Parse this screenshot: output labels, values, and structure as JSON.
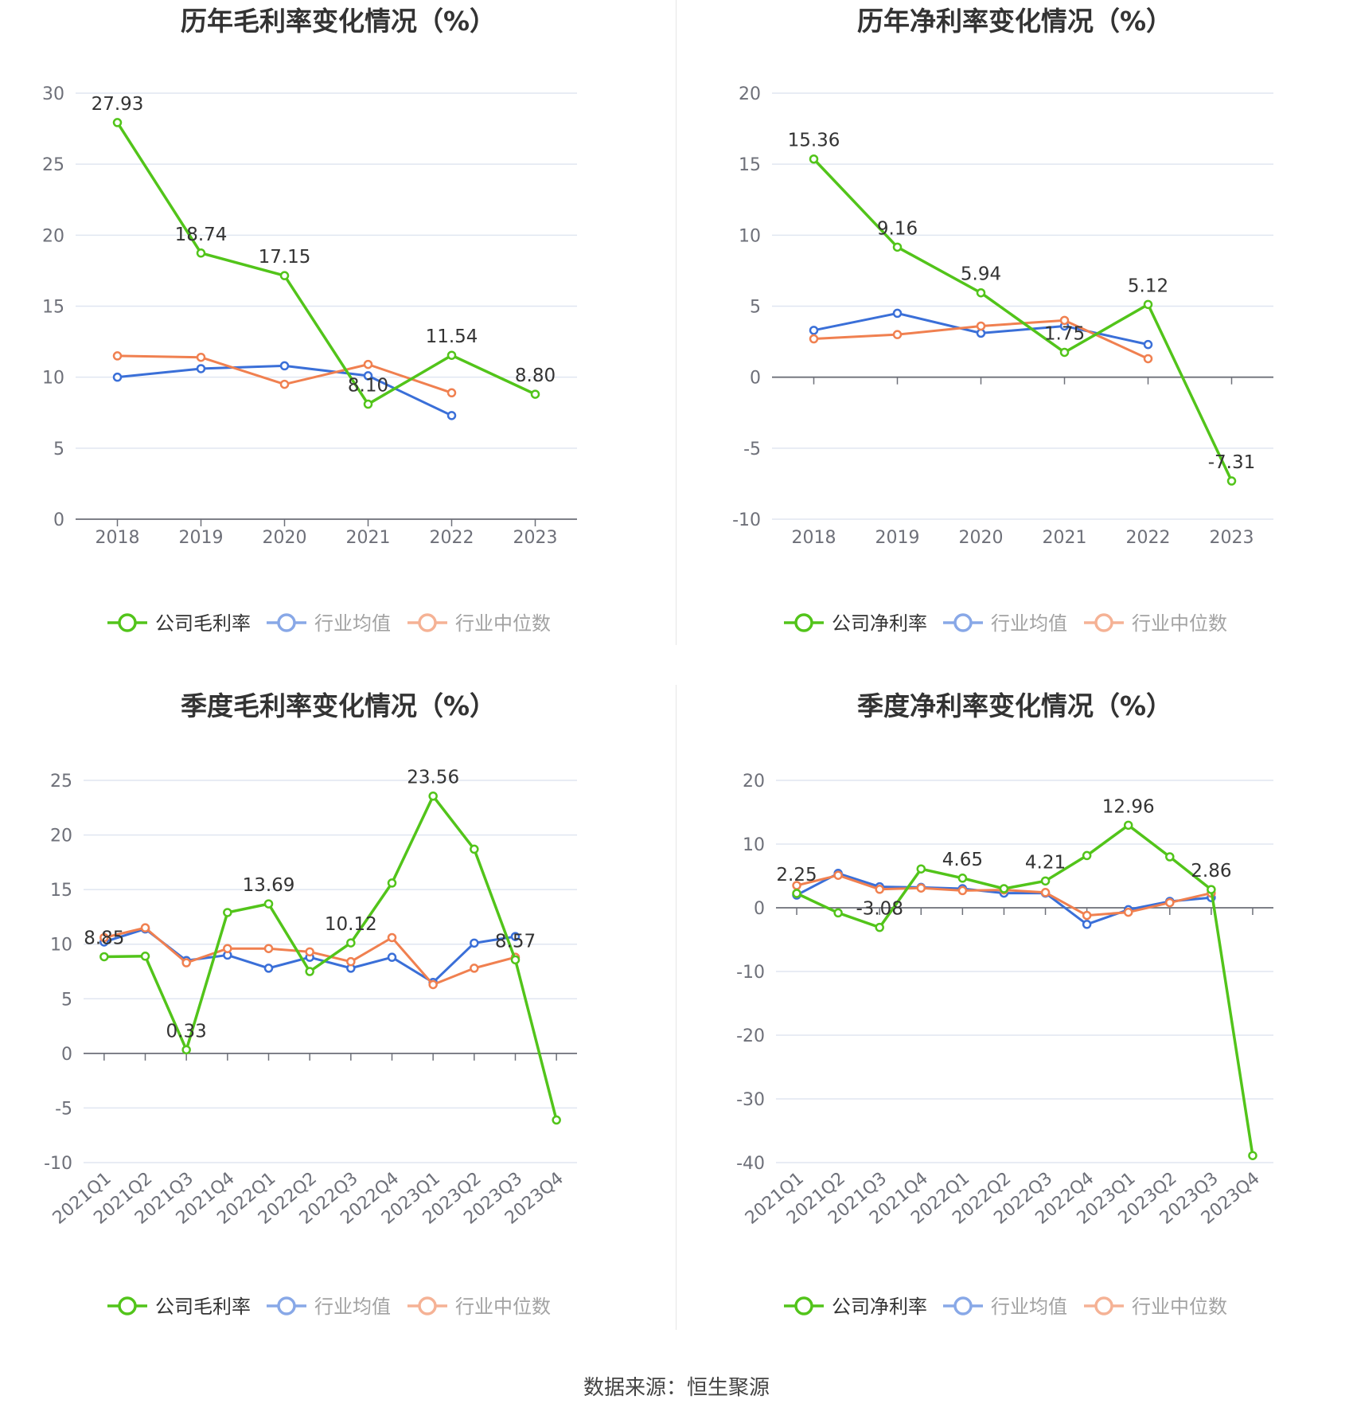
{
  "source": "数据来源：恒生聚源",
  "colors": {
    "company": "#52c41a",
    "avg": "#3a6fd8",
    "median": "#f08050",
    "grid": "#e0e6f1",
    "axis": "#6e7079",
    "text": "#333333",
    "tick": "#6e7079"
  },
  "charts": [
    {
      "id": "annual-gross",
      "title": "历年毛利率变化情况（%）",
      "legend": [
        "公司毛利率",
        "行业均值",
        "行业中位数"
      ],
      "chart_data": {
        "type": "line",
        "categories": [
          "2018",
          "2019",
          "2020",
          "2021",
          "2022",
          "2023"
        ],
        "y_ticks": [
          "30",
          "25",
          "20",
          "15",
          "10",
          "5",
          "0"
        ],
        "ylim": [
          0,
          30
        ],
        "series": [
          {
            "name": "公司毛利率",
            "values": [
              27.93,
              18.74,
              17.15,
              8.1,
              11.54,
              8.8
            ],
            "labels": [
              "27.93",
              "18.74",
              "17.15",
              "8.10",
              "11.54",
              "8.80"
            ]
          },
          {
            "name": "行业均值",
            "values": [
              10.0,
              10.6,
              10.8,
              10.1,
              7.3,
              null
            ]
          },
          {
            "name": "行业中位数",
            "values": [
              11.5,
              11.4,
              9.5,
              10.9,
              8.9,
              null
            ]
          }
        ]
      }
    },
    {
      "id": "annual-net",
      "title": "历年净利率变化情况（%）",
      "legend": [
        "公司净利率",
        "行业均值",
        "行业中位数"
      ],
      "chart_data": {
        "type": "line",
        "categories": [
          "2018",
          "2019",
          "2020",
          "2021",
          "2022",
          "2023"
        ],
        "y_ticks": [
          "20",
          "15",
          "10",
          "5",
          "0",
          "-5",
          "-10"
        ],
        "ylim": [
          -10,
          20
        ],
        "series": [
          {
            "name": "公司净利率",
            "values": [
              15.36,
              9.16,
              5.94,
              1.75,
              5.12,
              -7.31
            ],
            "labels": [
              "15.36",
              "9.16",
              "5.94",
              "1.75",
              "5.12",
              "-7.31"
            ]
          },
          {
            "name": "行业均值",
            "values": [
              3.3,
              4.5,
              3.1,
              3.6,
              2.3,
              null
            ]
          },
          {
            "name": "行业中位数",
            "values": [
              2.7,
              3.0,
              3.6,
              4.0,
              1.3,
              null
            ]
          }
        ]
      }
    },
    {
      "id": "quarterly-gross",
      "title": "季度毛利率变化情况（%）",
      "legend": [
        "公司毛利率",
        "行业均值",
        "行业中位数"
      ],
      "chart_data": {
        "type": "line",
        "categories": [
          "2021Q1",
          "2021Q2",
          "2021Q3",
          "2021Q4",
          "2022Q1",
          "2022Q2",
          "2022Q3",
          "2022Q4",
          "2023Q1",
          "2023Q2",
          "2023Q3",
          "2023Q4"
        ],
        "y_ticks": [
          "25",
          "20",
          "15",
          "10",
          "5",
          "0",
          "-5",
          "-10"
        ],
        "ylim": [
          -10,
          25
        ],
        "series": [
          {
            "name": "公司毛利率",
            "values": [
              8.85,
              8.9,
              0.33,
              12.9,
              13.69,
              7.5,
              10.12,
              15.6,
              23.56,
              18.7,
              8.57,
              -6.1
            ],
            "labels": [
              "8.85",
              "",
              "0.33",
              "",
              "13.69",
              "",
              "10.12",
              "",
              "23.56",
              "",
              "8.57",
              ""
            ]
          },
          {
            "name": "行业均值",
            "values": [
              10.2,
              11.4,
              8.5,
              9.0,
              7.8,
              8.8,
              7.8,
              8.8,
              6.5,
              10.1,
              10.7,
              null
            ]
          },
          {
            "name": "行业中位数",
            "values": [
              10.6,
              11.5,
              8.3,
              9.6,
              9.6,
              9.3,
              8.4,
              10.6,
              6.3,
              7.8,
              8.8,
              null
            ]
          }
        ]
      }
    },
    {
      "id": "quarterly-net",
      "title": "季度净利率变化情况（%）",
      "legend": [
        "公司净利率",
        "行业均值",
        "行业中位数"
      ],
      "chart_data": {
        "type": "line",
        "categories": [
          "2021Q1",
          "2021Q2",
          "2021Q3",
          "2021Q4",
          "2022Q1",
          "2022Q2",
          "2022Q3",
          "2022Q4",
          "2023Q1",
          "2023Q2",
          "2023Q3",
          "2023Q4"
        ],
        "y_ticks": [
          "20",
          "10",
          "0",
          "-10",
          "-20",
          "-30",
          "-40"
        ],
        "ylim": [
          -40,
          20
        ],
        "series": [
          {
            "name": "公司净利率",
            "values": [
              2.25,
              -0.8,
              -3.08,
              6.1,
              4.65,
              3.0,
              4.21,
              8.2,
              12.96,
              8.0,
              2.86,
              -38.9
            ],
            "labels": [
              "2.25",
              "",
              "-3.08",
              "",
              "4.65",
              "",
              "4.21",
              "",
              "12.96",
              "",
              "2.86",
              ""
            ]
          },
          {
            "name": "行业均值",
            "values": [
              2.0,
              5.4,
              3.3,
              3.2,
              3.0,
              2.3,
              2.3,
              -2.6,
              -0.3,
              1.0,
              1.6,
              null
            ]
          },
          {
            "name": "行业中位数",
            "values": [
              3.5,
              5.1,
              2.9,
              3.1,
              2.7,
              2.8,
              2.4,
              -1.2,
              -0.7,
              0.8,
              2.3,
              null
            ]
          }
        ]
      }
    }
  ]
}
